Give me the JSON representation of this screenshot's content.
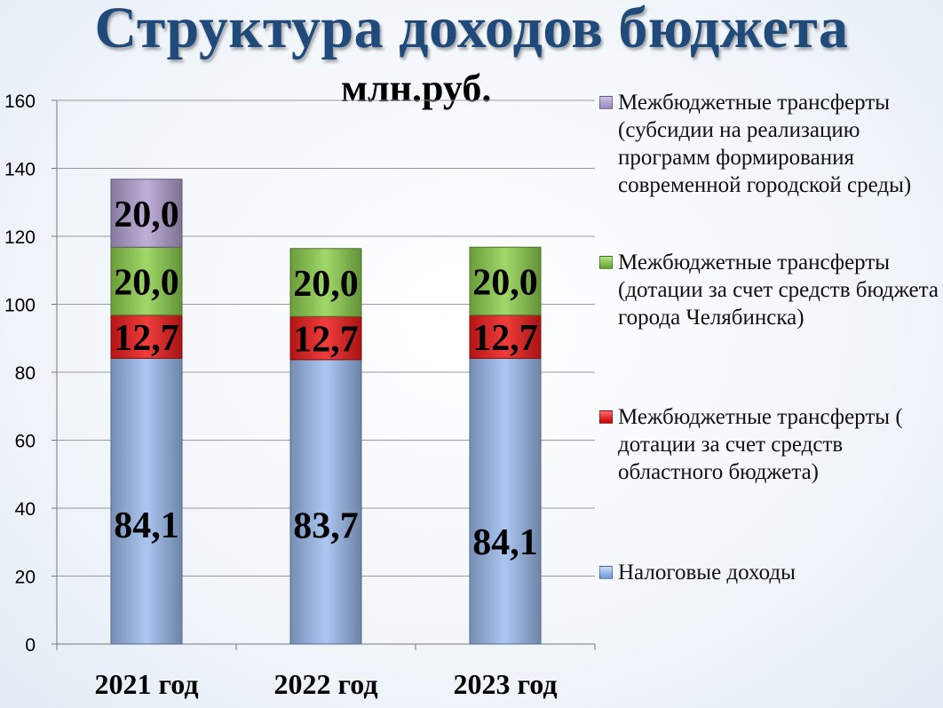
{
  "page": {
    "title": "Структура доходов бюджета",
    "unit": "млн.руб."
  },
  "chart_data": {
    "type": "bar",
    "stacked": true,
    "categories": [
      "2021 год",
      "2022 год",
      "2023 год"
    ],
    "ylim": [
      0,
      160
    ],
    "yticks": [
      0,
      20,
      40,
      60,
      80,
      100,
      120,
      140,
      160
    ],
    "grid": true,
    "legend_position": "right",
    "series": [
      {
        "name": "Налоговые доходы",
        "color": "#9dbdf0",
        "values": [
          84.1,
          83.7,
          84.1
        ],
        "labels": [
          "84,1",
          "83,7",
          "84,1"
        ]
      },
      {
        "name": "Межбюджетные трансферты ( дотации за   счет средств областного бюджета)",
        "color": "#ee1b1b",
        "values": [
          12.7,
          12.7,
          12.7
        ],
        "labels": [
          "12,7",
          "12,7",
          "12,7"
        ]
      },
      {
        "name": "Межбюджетные трансферты (дотации за счет средств бюджета города Челябинска)",
        "color": "#8fd14f",
        "values": [
          20.0,
          20.0,
          20.0
        ],
        "labels": [
          "20,0",
          "20,0",
          "20,0"
        ]
      },
      {
        "name": "Межбюджетные трансферты (субсидии на реализацию программ формирования современной городской среды)",
        "color": "#b4a2d2",
        "values": [
          20.0,
          0,
          0
        ],
        "labels": [
          "20,0",
          "",
          ""
        ]
      }
    ]
  }
}
